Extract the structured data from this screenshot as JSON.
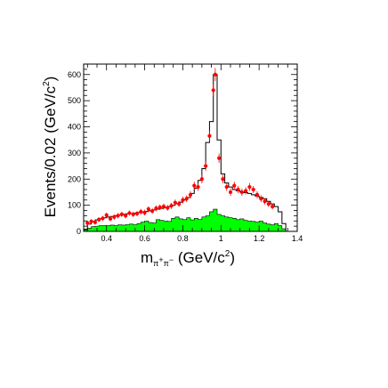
{
  "chart_data": {
    "type": "histogram",
    "xlabel": {
      "main": "m",
      "sub1": "π",
      "sup1": "+",
      "sub2": "π",
      "sup2": "−",
      "unit_pre": " (GeV/c",
      "unit_exp": "2",
      "unit_post": ")"
    },
    "ylabel": {
      "main": "Events/0.02 (GeV/c",
      "exp": "2",
      "post": ")"
    },
    "xlim": [
      0.28,
      1.4
    ],
    "ylim": [
      0,
      640
    ],
    "x_ticks": [
      0.4,
      0.6,
      0.8,
      1,
      1.2,
      1.4
    ],
    "x_tick_labels": [
      "0.4",
      "0.6",
      "0.8",
      "1",
      "1.2",
      "1.4"
    ],
    "y_ticks": [
      0,
      100,
      200,
      300,
      400,
      500,
      600
    ],
    "y_tick_labels": [
      "0",
      "100",
      "200",
      "300",
      "400",
      "500",
      "600"
    ],
    "grid": false,
    "colors": {
      "data_points": "#ff0000",
      "mc_total": "#000000",
      "background_fill": "#00ff00",
      "axis": "#000000"
    },
    "series": [
      {
        "kind": "histogram-step",
        "bins": [
          [
            0.28,
            0.3,
            8
          ],
          [
            0.3,
            0.32,
            28
          ],
          [
            0.32,
            0.34,
            38
          ],
          [
            0.34,
            0.36,
            44
          ],
          [
            0.36,
            0.38,
            48
          ],
          [
            0.38,
            0.4,
            52
          ],
          [
            0.4,
            0.42,
            55
          ],
          [
            0.42,
            0.44,
            57
          ],
          [
            0.44,
            0.46,
            60
          ],
          [
            0.46,
            0.48,
            63
          ],
          [
            0.48,
            0.5,
            65
          ],
          [
            0.5,
            0.52,
            67
          ],
          [
            0.52,
            0.54,
            68
          ],
          [
            0.54,
            0.56,
            70
          ],
          [
            0.56,
            0.58,
            72
          ],
          [
            0.58,
            0.6,
            74
          ],
          [
            0.6,
            0.62,
            76
          ],
          [
            0.62,
            0.64,
            79
          ],
          [
            0.64,
            0.66,
            82
          ],
          [
            0.66,
            0.68,
            85
          ],
          [
            0.68,
            0.7,
            88
          ],
          [
            0.7,
            0.72,
            91
          ],
          [
            0.72,
            0.74,
            95
          ],
          [
            0.74,
            0.76,
            100
          ],
          [
            0.76,
            0.78,
            106
          ],
          [
            0.78,
            0.8,
            112
          ],
          [
            0.8,
            0.82,
            120
          ],
          [
            0.82,
            0.84,
            130
          ],
          [
            0.84,
            0.86,
            145
          ],
          [
            0.86,
            0.88,
            165
          ],
          [
            0.88,
            0.9,
            195
          ],
          [
            0.9,
            0.92,
            240
          ],
          [
            0.92,
            0.94,
            340
          ],
          [
            0.94,
            0.96,
            420
          ],
          [
            0.96,
            0.98,
            600
          ],
          [
            0.98,
            1.0,
            350
          ],
          [
            1.0,
            1.02,
            220
          ],
          [
            1.02,
            1.04,
            185
          ],
          [
            1.04,
            1.06,
            170
          ],
          [
            1.06,
            1.08,
            160
          ],
          [
            1.08,
            1.1,
            155
          ],
          [
            1.1,
            1.12,
            150
          ],
          [
            1.12,
            1.14,
            148
          ],
          [
            1.14,
            1.16,
            145
          ],
          [
            1.16,
            1.18,
            140
          ],
          [
            1.18,
            1.2,
            135
          ],
          [
            1.2,
            1.22,
            130
          ],
          [
            1.22,
            1.24,
            125
          ],
          [
            1.24,
            1.26,
            115
          ],
          [
            1.26,
            1.28,
            105
          ],
          [
            1.28,
            1.3,
            95
          ],
          [
            1.3,
            1.32,
            75
          ],
          [
            1.32,
            1.34,
            30
          ]
        ]
      },
      {
        "kind": "histogram-filled",
        "bins": [
          [
            0.28,
            0.3,
            5
          ],
          [
            0.3,
            0.32,
            12
          ],
          [
            0.32,
            0.34,
            18
          ],
          [
            0.34,
            0.36,
            20
          ],
          [
            0.36,
            0.38,
            22
          ],
          [
            0.38,
            0.4,
            22
          ],
          [
            0.4,
            0.42,
            22
          ],
          [
            0.42,
            0.44,
            24
          ],
          [
            0.44,
            0.46,
            22
          ],
          [
            0.46,
            0.48,
            25
          ],
          [
            0.48,
            0.5,
            24
          ],
          [
            0.5,
            0.52,
            26
          ],
          [
            0.52,
            0.54,
            28
          ],
          [
            0.54,
            0.56,
            26
          ],
          [
            0.56,
            0.58,
            30
          ],
          [
            0.58,
            0.6,
            35
          ],
          [
            0.6,
            0.62,
            40
          ],
          [
            0.62,
            0.64,
            34
          ],
          [
            0.64,
            0.66,
            32
          ],
          [
            0.66,
            0.68,
            45
          ],
          [
            0.68,
            0.7,
            42
          ],
          [
            0.7,
            0.72,
            40
          ],
          [
            0.72,
            0.74,
            38
          ],
          [
            0.74,
            0.76,
            50
          ],
          [
            0.76,
            0.78,
            55
          ],
          [
            0.78,
            0.8,
            48
          ],
          [
            0.8,
            0.82,
            45
          ],
          [
            0.82,
            0.84,
            52
          ],
          [
            0.84,
            0.86,
            44
          ],
          [
            0.86,
            0.88,
            50
          ],
          [
            0.88,
            0.9,
            46
          ],
          [
            0.9,
            0.92,
            55
          ],
          [
            0.92,
            0.94,
            60
          ],
          [
            0.94,
            0.96,
            75
          ],
          [
            0.96,
            0.98,
            85
          ],
          [
            0.98,
            1.0,
            65
          ],
          [
            1.0,
            1.02,
            60
          ],
          [
            1.02,
            1.04,
            55
          ],
          [
            1.04,
            1.06,
            52
          ],
          [
            1.06,
            1.08,
            50
          ],
          [
            1.08,
            1.1,
            45
          ],
          [
            1.1,
            1.12,
            48
          ],
          [
            1.12,
            1.14,
            42
          ],
          [
            1.14,
            1.16,
            40
          ],
          [
            1.16,
            1.18,
            38
          ],
          [
            1.18,
            1.2,
            35
          ],
          [
            1.2,
            1.22,
            40
          ],
          [
            1.22,
            1.24,
            32
          ],
          [
            1.24,
            1.26,
            28
          ],
          [
            1.26,
            1.28,
            25
          ],
          [
            1.28,
            1.3,
            30
          ],
          [
            1.3,
            1.32,
            22
          ],
          [
            1.32,
            1.34,
            10
          ]
        ]
      },
      {
        "kind": "points-with-errors",
        "points": [
          [
            0.3,
            32,
            9
          ],
          [
            0.32,
            38,
            9
          ],
          [
            0.34,
            35,
            9
          ],
          [
            0.36,
            45,
            9
          ],
          [
            0.38,
            50,
            9
          ],
          [
            0.4,
            62,
            10
          ],
          [
            0.42,
            48,
            9
          ],
          [
            0.44,
            55,
            10
          ],
          [
            0.46,
            60,
            10
          ],
          [
            0.48,
            65,
            10
          ],
          [
            0.5,
            60,
            10
          ],
          [
            0.52,
            70,
            10
          ],
          [
            0.54,
            65,
            10
          ],
          [
            0.56,
            68,
            10
          ],
          [
            0.58,
            75,
            11
          ],
          [
            0.6,
            72,
            11
          ],
          [
            0.62,
            85,
            11
          ],
          [
            0.64,
            78,
            11
          ],
          [
            0.66,
            88,
            11
          ],
          [
            0.68,
            92,
            11
          ],
          [
            0.7,
            95,
            12
          ],
          [
            0.72,
            90,
            11
          ],
          [
            0.74,
            98,
            12
          ],
          [
            0.76,
            110,
            12
          ],
          [
            0.78,
            105,
            12
          ],
          [
            0.8,
            120,
            13
          ],
          [
            0.82,
            125,
            13
          ],
          [
            0.84,
            140,
            14
          ],
          [
            0.86,
            175,
            15
          ],
          [
            0.88,
            170,
            15
          ],
          [
            0.9,
            200,
            16
          ],
          [
            0.92,
            250,
            18
          ],
          [
            0.94,
            365,
            20
          ],
          [
            0.96,
            540,
            24
          ],
          [
            0.97,
            600,
            25
          ],
          [
            0.99,
            280,
            18
          ],
          [
            1.01,
            200,
            16
          ],
          [
            1.03,
            170,
            15
          ],
          [
            1.05,
            150,
            14
          ],
          [
            1.07,
            175,
            15
          ],
          [
            1.09,
            160,
            14
          ],
          [
            1.11,
            150,
            14
          ],
          [
            1.13,
            155,
            14
          ],
          [
            1.15,
            170,
            15
          ],
          [
            1.17,
            160,
            14
          ],
          [
            1.19,
            140,
            14
          ],
          [
            1.21,
            125,
            13
          ],
          [
            1.23,
            115,
            12
          ],
          [
            1.25,
            105,
            12
          ],
          [
            1.27,
            95,
            11
          ]
        ]
      }
    ]
  }
}
